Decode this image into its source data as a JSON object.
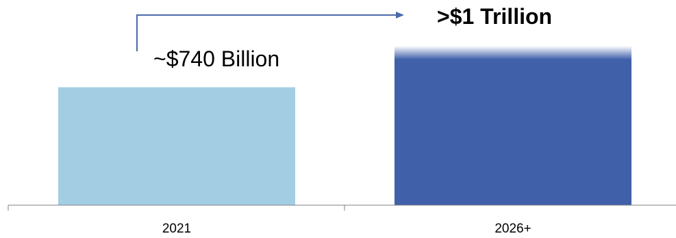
{
  "chart_data": {
    "type": "bar",
    "categories": [
      "2021",
      "2026+"
    ],
    "values": [
      740,
      1000
    ],
    "value_unit": "Billion USD",
    "data_labels": [
      "~$740 Billion",
      ">$1 Trillion"
    ],
    "title": "",
    "xlabel": "",
    "ylabel": "",
    "ylim": [
      0,
      1000
    ],
    "grid": false,
    "legend": "none",
    "colors": [
      "#a3cde3",
      "#4060aa"
    ],
    "axis_color": "#808080",
    "arrow_color": "#4a6aaa",
    "annotation": "growth-arrow-from-2021-to-2026+"
  }
}
